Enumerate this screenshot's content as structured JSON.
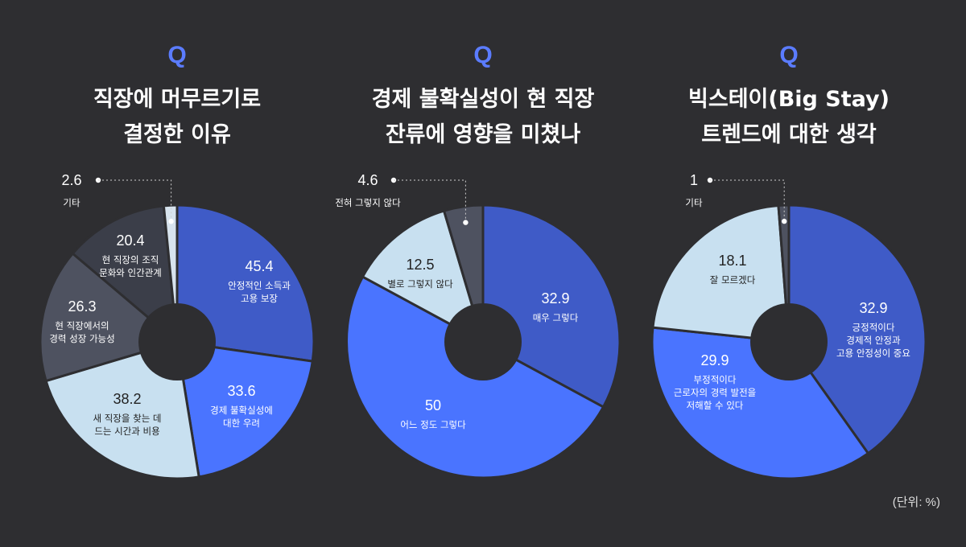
{
  "unit_note": "(단위: %)",
  "colors": {
    "background": "#2e2e31",
    "accent": "#5b7cff"
  },
  "chart_data": [
    {
      "type": "pie",
      "q_mark": "Q",
      "title_lines": [
        "직장에 머무르기로",
        "결정한 이유"
      ],
      "unit": "%",
      "slices": [
        {
          "value": 45.4,
          "label_lines": [
            "안정적인 소득과",
            "고용 보장"
          ],
          "color": "#3f5bc7",
          "text_color": "#ffffff"
        },
        {
          "value": 33.6,
          "label_lines": [
            "경제 불확실성에",
            "대한 우려"
          ],
          "color": "#4a74ff",
          "text_color": "#ffffff"
        },
        {
          "value": 38.2,
          "label_lines": [
            "새 직장을 찾는 데",
            "드는 시간과 비용"
          ],
          "color": "#c8e0f0",
          "text_color": "#222222"
        },
        {
          "value": 26.3,
          "label_lines": [
            "현 직장에서의",
            "경력 성장 가능성"
          ],
          "color": "#4e5260",
          "text_color": "#ffffff"
        },
        {
          "value": 20.4,
          "label_lines": [
            "현 직장의 조직",
            "문화와 인간관계"
          ],
          "color": "#3b3e49",
          "text_color": "#ffffff"
        },
        {
          "value": 2.6,
          "label_lines": [
            "기타"
          ],
          "color": "#d7e3ee",
          "text_color": "#ffffff",
          "callout": true
        }
      ]
    },
    {
      "type": "pie",
      "q_mark": "Q",
      "title_lines": [
        "경제 불확실성이 현 직장",
        "잔류에 영향을 미쳤나"
      ],
      "unit": "%",
      "slices": [
        {
          "value": 32.9,
          "label_lines": [
            "매우 그렇다"
          ],
          "color": "#3f5bc7",
          "text_color": "#ffffff"
        },
        {
          "value": 50,
          "label_lines": [
            "어느 정도 그렇다"
          ],
          "color": "#4a74ff",
          "text_color": "#ffffff"
        },
        {
          "value": 12.5,
          "label_lines": [
            "별로 그렇지 않다"
          ],
          "color": "#c8e0f0",
          "text_color": "#222222"
        },
        {
          "value": 4.6,
          "label_lines": [
            "전혀 그렇지 않다"
          ],
          "color": "#4e5260",
          "text_color": "#ffffff",
          "callout": true
        }
      ]
    },
    {
      "type": "pie",
      "q_mark": "Q",
      "title_lines": [
        "빅스테이(Big Stay)",
        "트렌드에 대한 생각"
      ],
      "unit": "%",
      "slices": [
        {
          "value": 32.9,
          "label_lines": [
            "긍정적이다",
            "경제적 안정과",
            "고용 안정성이 중요"
          ],
          "color": "#3f5bc7",
          "text_color": "#ffffff"
        },
        {
          "value": 29.9,
          "label_lines": [
            "부정적이다",
            "근로자의 경력 발전을",
            "저해할 수 있다"
          ],
          "color": "#4a74ff",
          "text_color": "#ffffff"
        },
        {
          "value": 18.1,
          "label_lines": [
            "잘 모르겠다"
          ],
          "color": "#c8e0f0",
          "text_color": "#222222"
        },
        {
          "value": 1,
          "label_lines": [
            "기타"
          ],
          "color": "#4e5260",
          "text_color": "#ffffff",
          "callout": true
        }
      ]
    }
  ]
}
